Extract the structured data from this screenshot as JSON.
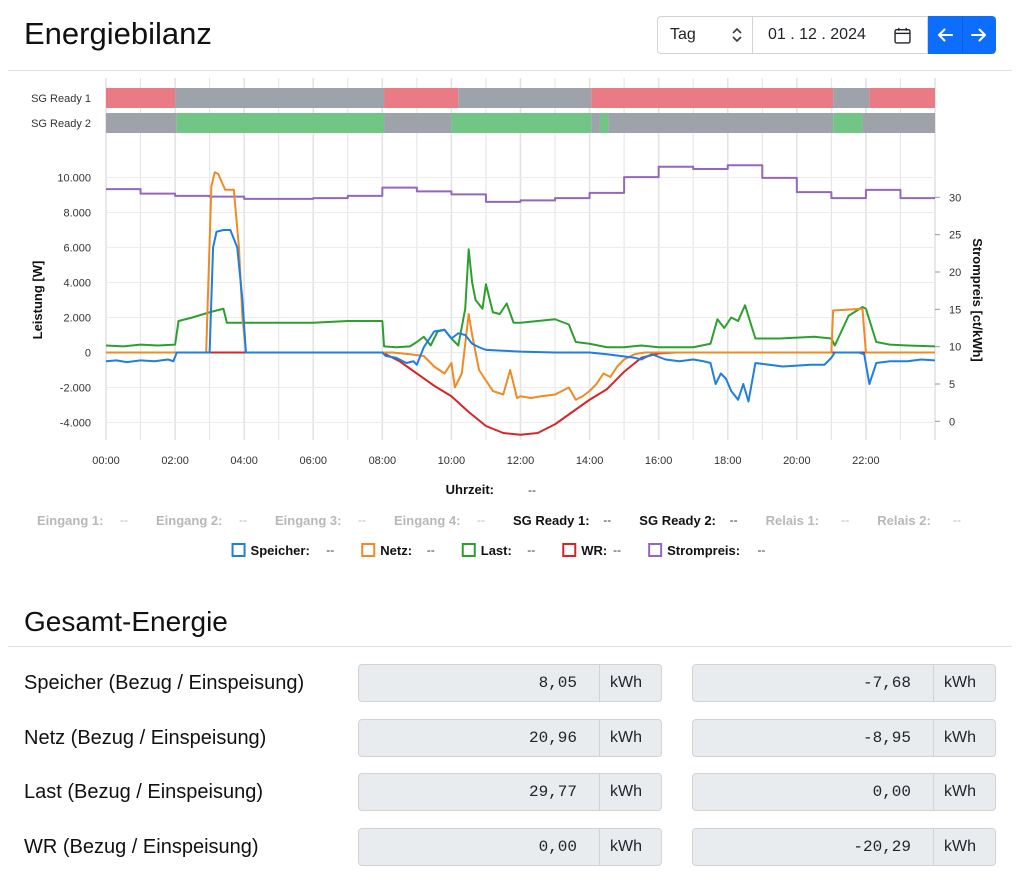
{
  "header": {
    "title": "Energiebilanz",
    "period_select": "Tag",
    "date_value": "01 . 12 . 2024"
  },
  "icons": {
    "select": "chevron-updown-icon",
    "calendar": "calendar-icon",
    "prev": "arrow-left-icon",
    "next": "arrow-right-icon"
  },
  "colors": {
    "primary": "#0d6efd",
    "speicher": "#1f7fe0",
    "netz": "#f08a24",
    "last": "#2ca02c",
    "wr": "#d62728",
    "strompreis": "#9467bd",
    "state_on": "#72c685",
    "state_off": "#ea7a84",
    "state_neutral": "#9ea3ab"
  },
  "chart_data": {
    "type": "line",
    "xlabel": "Uhrzeit",
    "ylabel": "Leistung [W]",
    "y2label": "Strompreis [ct/kWh]",
    "xlim": [
      0,
      24
    ],
    "ylim": [
      -5000,
      11000
    ],
    "y2lim": [
      -2.5,
      35
    ],
    "x_ticks": [
      "00:00",
      "02:00",
      "04:00",
      "06:00",
      "08:00",
      "10:00",
      "12:00",
      "14:00",
      "16:00",
      "18:00",
      "20:00",
      "22:00"
    ],
    "y_ticks": [
      "10.000",
      "8.000",
      "6.000",
      "4.000",
      "2.000",
      "0",
      "-2.000",
      "-4.000"
    ],
    "y_tick_values": [
      10000,
      8000,
      6000,
      4000,
      2000,
      0,
      -2000,
      -4000
    ],
    "y2_ticks": [
      "30",
      "25",
      "20",
      "15",
      "10",
      "5",
      "0"
    ],
    "y2_tick_values": [
      30,
      25,
      20,
      15,
      10,
      5,
      0
    ],
    "grid": true,
    "legend_placement": "bottom",
    "x_readout": "--",
    "state_rows": [
      {
        "name": "SG Ready 1",
        "segments": [
          {
            "start": 0,
            "end": 2,
            "state": "off"
          },
          {
            "start": 2,
            "end": 8.05,
            "state": "neutral"
          },
          {
            "start": 8.05,
            "end": 10.2,
            "state": "off"
          },
          {
            "start": 10.2,
            "end": 14.05,
            "state": "neutral"
          },
          {
            "start": 14.05,
            "end": 21.05,
            "state": "off"
          },
          {
            "start": 21.05,
            "end": 22.1,
            "state": "neutral"
          },
          {
            "start": 22.1,
            "end": 24,
            "state": "off"
          }
        ]
      },
      {
        "name": "SG Ready 2",
        "segments": [
          {
            "start": 0,
            "end": 2.05,
            "state": "neutral"
          },
          {
            "start": 2.05,
            "end": 8.05,
            "state": "on"
          },
          {
            "start": 8.05,
            "end": 10,
            "state": "neutral"
          },
          {
            "start": 10,
            "end": 14.05,
            "state": "on"
          },
          {
            "start": 14.05,
            "end": 14.3,
            "state": "neutral"
          },
          {
            "start": 14.3,
            "end": 14.55,
            "state": "on"
          },
          {
            "start": 14.55,
            "end": 21.05,
            "state": "neutral"
          },
          {
            "start": 21.05,
            "end": 21.9,
            "state": "on"
          },
          {
            "start": 21.9,
            "end": 24,
            "state": "neutral"
          }
        ]
      }
    ],
    "series": [
      {
        "name": "Speicher",
        "axis": "y",
        "x": [
          0,
          0.3,
          0.6,
          1.0,
          1.4,
          1.8,
          1.95,
          2.05,
          2.5,
          2.9,
          3.0,
          3.1,
          3.2,
          3.4,
          3.6,
          3.8,
          3.95,
          4.05,
          4.2,
          5,
          6,
          7,
          8,
          8.1,
          8.4,
          8.7,
          8.9,
          9.0,
          9.2,
          9.5,
          9.8,
          10.0,
          10.2,
          10.4,
          10.6,
          10.8,
          11.0,
          11.5,
          12,
          13,
          14,
          14.5,
          15.3,
          15.5,
          15.8,
          16.2,
          16.6,
          17.0,
          17.3,
          17.5,
          17.65,
          17.8,
          17.95,
          18.1,
          18.3,
          18.45,
          18.6,
          18.8,
          19.2,
          19.6,
          20.0,
          20.4,
          20.8,
          21.0,
          21.1,
          21.5,
          21.8,
          21.95,
          22.1,
          22.3,
          22.7,
          23.2,
          23.6,
          24
        ],
        "y": [
          -500,
          -450,
          -550,
          -450,
          -500,
          -400,
          -500,
          0,
          0,
          0,
          0,
          6000,
          6900,
          7000,
          7000,
          6000,
          3000,
          0,
          0,
          0,
          0,
          0,
          0,
          -200,
          -300,
          -600,
          -500,
          -700,
          300,
          1200,
          1300,
          800,
          1100,
          1000,
          500,
          300,
          150,
          100,
          50,
          0,
          0,
          -100,
          -300,
          -400,
          -100,
          -400,
          -500,
          -400,
          -500,
          -600,
          -1800,
          -1200,
          -1500,
          -2200,
          -2700,
          -1800,
          -2800,
          -600,
          -700,
          -800,
          -750,
          -700,
          -700,
          -300,
          0,
          0,
          0,
          -100,
          -1800,
          -600,
          -500,
          -500,
          -400,
          -450
        ]
      },
      {
        "name": "Netz",
        "axis": "y",
        "x": [
          0,
          1,
          2.0,
          2.1,
          2.5,
          2.9,
          3.05,
          3.15,
          3.25,
          3.45,
          3.7,
          3.85,
          3.95,
          4.05,
          4.2,
          5,
          6,
          7,
          8,
          8.3,
          8.8,
          9.2,
          9.5,
          9.8,
          10.0,
          10.1,
          10.3,
          10.5,
          10.6,
          10.8,
          11.0,
          11.2,
          11.5,
          11.7,
          11.9,
          12.0,
          12.3,
          12.6,
          13.0,
          13.4,
          13.6,
          13.8,
          14.0,
          14.2,
          14.4,
          14.6,
          14.8,
          15.0,
          15.3,
          15.6,
          16,
          18,
          20,
          21,
          21.05,
          21.9,
          22.0,
          24
        ],
        "y": [
          0,
          0,
          0,
          0,
          0,
          0,
          9500,
          10300,
          10200,
          9300,
          9300,
          6000,
          2000,
          0,
          0,
          0,
          0,
          0,
          0,
          0,
          -100,
          -200,
          -800,
          -1200,
          -600,
          -2000,
          -1200,
          2200,
          1000,
          -1000,
          -1600,
          -2200,
          -2400,
          -1000,
          -2600,
          -2500,
          -2600,
          -2500,
          -2400,
          -2000,
          -2700,
          -2500,
          -2200,
          -1800,
          -1200,
          -1400,
          -800,
          -400,
          -100,
          0,
          0,
          0,
          0,
          0,
          2400,
          2500,
          0,
          0
        ]
      },
      {
        "name": "Last",
        "axis": "y",
        "x": [
          0,
          0.5,
          1.0,
          1.5,
          2.0,
          2.1,
          2.5,
          3.0,
          3.4,
          3.5,
          3.8,
          4.0,
          5,
          6,
          7,
          8.0,
          8.05,
          8.4,
          8.8,
          9.0,
          9.2,
          9.4,
          9.6,
          9.8,
          10.0,
          10.2,
          10.4,
          10.5,
          10.6,
          10.7,
          10.9,
          11.0,
          11.2,
          11.4,
          11.6,
          11.8,
          12.0,
          12.5,
          13.0,
          13.4,
          13.6,
          14.0,
          14.5,
          15.0,
          15.5,
          16.0,
          17.0,
          17.5,
          17.7,
          17.9,
          18.1,
          18.3,
          18.5,
          18.8,
          19.5,
          20.5,
          21.0,
          21.1,
          21.5,
          21.9,
          22.0,
          22.3,
          22.7,
          23.2,
          24
        ],
        "y": [
          400,
          350,
          450,
          400,
          450,
          1800,
          2000,
          2300,
          2500,
          1700,
          1700,
          1700,
          1700,
          1700,
          1800,
          1800,
          350,
          300,
          350,
          600,
          900,
          400,
          1200,
          1300,
          800,
          400,
          2500,
          5900,
          4000,
          3000,
          2500,
          3900,
          2300,
          2200,
          2800,
          1700,
          1700,
          1800,
          1900,
          1600,
          600,
          500,
          300,
          300,
          400,
          300,
          300,
          500,
          1900,
          1400,
          2000,
          1800,
          2700,
          800,
          800,
          900,
          800,
          400,
          2100,
          2600,
          2500,
          600,
          450,
          400,
          350
        ]
      },
      {
        "name": "WR",
        "axis": "y",
        "x": [
          0,
          4,
          8.0,
          8.5,
          9.0,
          9.5,
          10.0,
          10.5,
          11.0,
          11.5,
          12.0,
          12.5,
          13.0,
          13.5,
          14.0,
          14.5,
          15.0,
          15.5,
          16.0,
          16.5,
          20,
          24
        ],
        "y": [
          0,
          0,
          0,
          -500,
          -1200,
          -1900,
          -2500,
          -3400,
          -4200,
          -4600,
          -4700,
          -4600,
          -4100,
          -3400,
          -2700,
          -2100,
          -1100,
          -300,
          -50,
          0,
          0,
          0
        ]
      },
      {
        "name": "Strompreis",
        "axis": "y2",
        "x": [
          0,
          1,
          2,
          3,
          4,
          5,
          6,
          7,
          8,
          9,
          10,
          11,
          12,
          13,
          14,
          15,
          16,
          17,
          18,
          19,
          20,
          21,
          22,
          23
        ],
        "y": [
          31.1,
          30.5,
          30.2,
          30.1,
          29.8,
          29.8,
          29.9,
          30.2,
          31.3,
          30.8,
          30.4,
          29.4,
          29.6,
          29.9,
          30.6,
          32.7,
          34.1,
          33.8,
          34.3,
          32.6,
          30.7,
          29.9,
          31.0,
          29.9
        ]
      }
    ],
    "legend_row1": [
      {
        "label": "Eingang 1:",
        "value": "--",
        "active": false
      },
      {
        "label": "Eingang 2:",
        "value": "--",
        "active": false
      },
      {
        "label": "Eingang 3:",
        "value": "--",
        "active": false
      },
      {
        "label": "Eingang 4:",
        "value": "--",
        "active": false
      },
      {
        "label": "SG Ready 1:",
        "value": "--",
        "active": true
      },
      {
        "label": "SG Ready 2:",
        "value": "--",
        "active": true
      },
      {
        "label": "Relais 1:",
        "value": "--",
        "active": false
      },
      {
        "label": "Relais 2:",
        "value": "--",
        "active": false
      }
    ],
    "legend_row2": [
      {
        "label": "Speicher:",
        "value": "--"
      },
      {
        "label": "Netz:",
        "value": "--"
      },
      {
        "label": "Last:",
        "value": "--"
      },
      {
        "label": "WR:",
        "value": "--"
      },
      {
        "label": "Strompreis:",
        "value": "--"
      }
    ]
  },
  "energy": {
    "title": "Gesamt-Energie",
    "unit": "kWh",
    "rows": [
      {
        "label": "Speicher (Bezug / Einspeisung)",
        "bezug": "8,05",
        "einspeisung": "-7,68"
      },
      {
        "label": "Netz (Bezug / Einspeisung)",
        "bezug": "20,96",
        "einspeisung": "-8,95"
      },
      {
        "label": "Last (Bezug / Einspeisung)",
        "bezug": "29,77",
        "einspeisung": "0,00"
      },
      {
        "label": "WR (Bezug / Einspeisung)",
        "bezug": "0,00",
        "einspeisung": "-20,29"
      }
    ]
  }
}
